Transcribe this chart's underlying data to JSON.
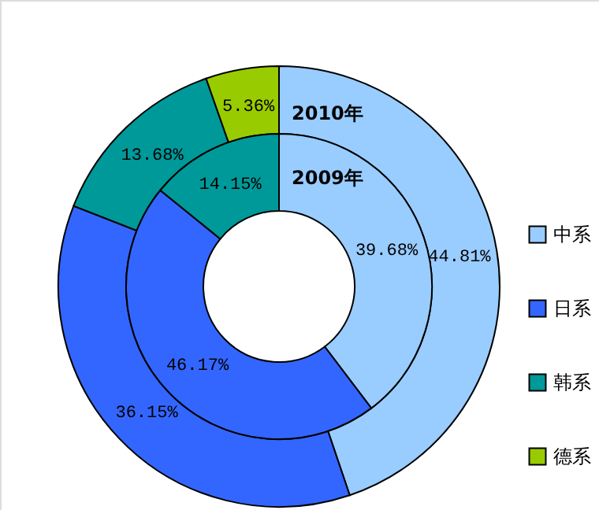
{
  "chart_data": {
    "type": "donut",
    "categories": [
      "中系",
      "日系",
      "韩系",
      "德系"
    ],
    "colors": [
      "#99ccff",
      "#3366ff",
      "#009999",
      "#99cc00"
    ],
    "series": [
      {
        "name": "2010年",
        "values": [
          44.81,
          36.15,
          13.68,
          5.36
        ],
        "value_labels": [
          "44.81%",
          "36.15%",
          "13.68%",
          "5.36%"
        ]
      },
      {
        "name": "2009年",
        "values": [
          39.68,
          46.17,
          14.15,
          null
        ],
        "value_labels": [
          "39.68%",
          "46.17%",
          "14.15%",
          null
        ]
      }
    ],
    "legend": "right"
  }
}
